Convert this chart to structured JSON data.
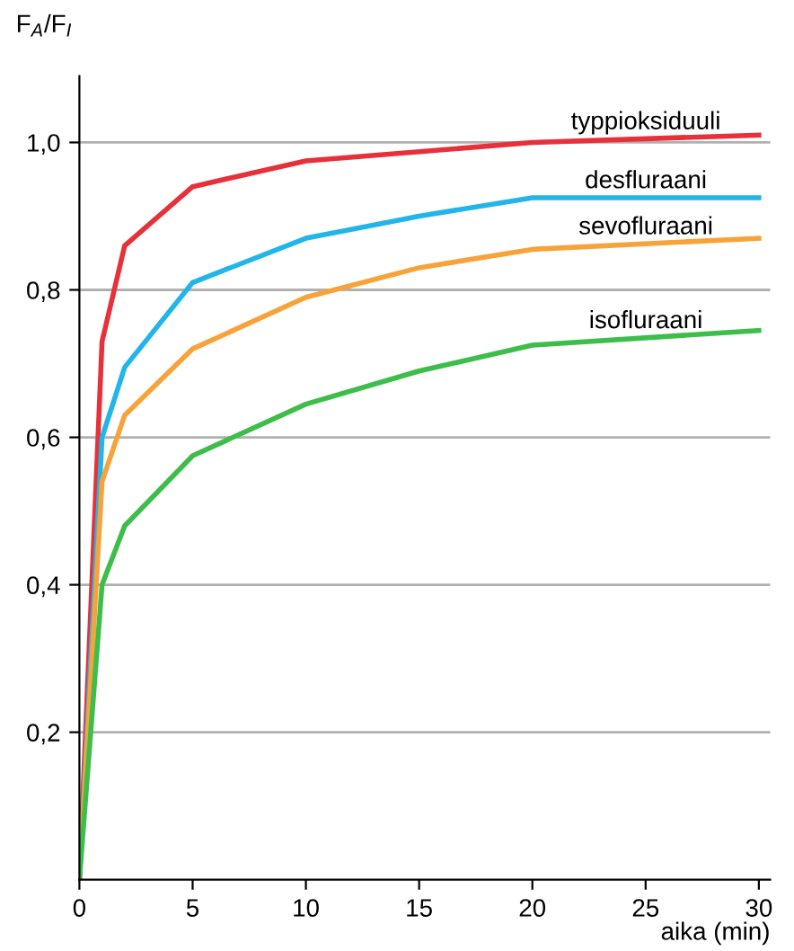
{
  "chart_data": {
    "type": "line",
    "ylabel": "F$_{A}$/F$_{I}$",
    "xlabel": "aika (min)",
    "xlim": [
      0,
      30.5
    ],
    "ylim": [
      0,
      1.09
    ],
    "xticks": [
      0,
      5,
      10,
      15,
      20,
      25,
      30
    ],
    "yticks": [
      {
        "value": 0.2,
        "label": "0,2"
      },
      {
        "value": 0.4,
        "label": "0,4"
      },
      {
        "value": 0.6,
        "label": "0,6"
      },
      {
        "value": 0.8,
        "label": "0,8"
      },
      {
        "value": 1.0,
        "label": "1,0"
      }
    ],
    "grid": "y",
    "legend": false,
    "marker": "none",
    "line_style": "solid",
    "series": [
      {
        "name": "typpioksiduuli",
        "color": "#e8303a",
        "x": [
          0,
          1,
          2,
          5,
          10,
          20,
          30
        ],
        "values": [
          0,
          0.73,
          0.86,
          0.94,
          0.975,
          1.0,
          1.01
        ]
      },
      {
        "name": "desfluraani",
        "color": "#22b5ea",
        "x": [
          0,
          1,
          2,
          5,
          10,
          15,
          20,
          30
        ],
        "values": [
          0,
          0.6,
          0.695,
          0.81,
          0.87,
          0.9,
          0.925,
          0.925
        ]
      },
      {
        "name": "sevofluraani",
        "color": "#f7a33a",
        "x": [
          0,
          1,
          2,
          5,
          10,
          15,
          20,
          30
        ],
        "values": [
          0,
          0.54,
          0.63,
          0.72,
          0.79,
          0.83,
          0.855,
          0.87
        ]
      },
      {
        "name": "isofluraani",
        "color": "#3dbd4a",
        "x": [
          0,
          1,
          2,
          5,
          10,
          15,
          20,
          30
        ],
        "values": [
          0,
          0.4,
          0.48,
          0.575,
          0.645,
          0.69,
          0.725,
          0.745
        ]
      }
    ]
  }
}
